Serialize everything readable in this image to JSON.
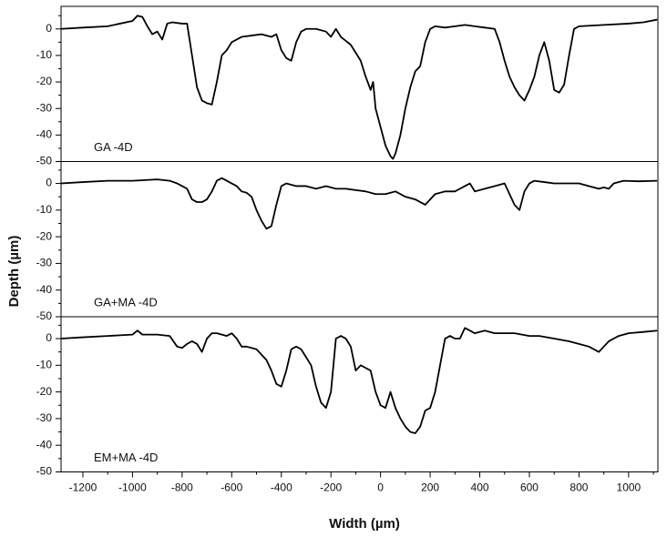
{
  "chart_data": [
    {
      "type": "line",
      "annotation": "GA  -4D",
      "x": [
        -1288,
        -1200,
        -1100,
        -1050,
        -1000,
        -980,
        -960,
        -940,
        -920,
        -900,
        -880,
        -860,
        -840,
        -800,
        -780,
        -760,
        -740,
        -720,
        -700,
        -680,
        -660,
        -640,
        -620,
        -600,
        -560,
        -520,
        -480,
        -440,
        -420,
        -400,
        -380,
        -360,
        -340,
        -320,
        -300,
        -260,
        -220,
        -200,
        -180,
        -160,
        -120,
        -80,
        -60,
        -40,
        -30,
        -20,
        0,
        20,
        40,
        50,
        60,
        80,
        100,
        120,
        140,
        160,
        180,
        200,
        220,
        260,
        300,
        340,
        380,
        420,
        460,
        480,
        500,
        520,
        540,
        560,
        580,
        600,
        620,
        640,
        660,
        680,
        700,
        720,
        740,
        760,
        780,
        800,
        900,
        1000,
        1060,
        1115
      ],
      "values": [
        0,
        0.5,
        1,
        2,
        3,
        5,
        4.5,
        1,
        -2,
        -1,
        -4,
        2,
        2.5,
        2,
        2,
        -10,
        -22,
        -27,
        -28,
        -28.5,
        -20,
        -10,
        -8,
        -5,
        -3,
        -2.5,
        -2,
        -3,
        -2,
        -8,
        -11,
        -12,
        -5,
        -1,
        0,
        0,
        -1,
        -3,
        0,
        -3,
        -6,
        -12,
        -18,
        -23,
        -20,
        -30,
        -37,
        -44,
        -48,
        -49,
        -47,
        -40,
        -30,
        -22,
        -16,
        -14,
        -5,
        0,
        1,
        0.5,
        1,
        1.5,
        1,
        0.5,
        0,
        -5,
        -12,
        -18,
        -22,
        -25,
        -27,
        -23,
        -18,
        -10,
        -5,
        -12,
        -23,
        -24,
        -21,
        -10,
        0,
        1,
        1.5,
        2,
        2.5,
        3.5
      ],
      "color": "#000000",
      "xlim": [
        -1288,
        1118
      ],
      "ylim": [
        -50,
        8.5
      ],
      "yticks": [
        0,
        -10,
        -20,
        -30,
        -40,
        -50
      ]
    },
    {
      "type": "line",
      "annotation": "GA+MA  -4D",
      "ylabel": "Depth (µm)",
      "x": [
        -1288,
        -1200,
        -1100,
        -1000,
        -900,
        -850,
        -820,
        -800,
        -780,
        -760,
        -740,
        -720,
        -700,
        -680,
        -660,
        -640,
        -620,
        -600,
        -580,
        -560,
        -540,
        -520,
        -500,
        -480,
        -460,
        -440,
        -420,
        -400,
        -380,
        -340,
        -300,
        -260,
        -220,
        -180,
        -140,
        -100,
        -60,
        -20,
        20,
        60,
        100,
        140,
        160,
        180,
        200,
        220,
        260,
        300,
        320,
        340,
        360,
        380,
        420,
        460,
        500,
        520,
        540,
        560,
        580,
        600,
        620,
        660,
        700,
        760,
        800,
        840,
        880,
        900,
        920,
        940,
        980,
        1040,
        1115
      ],
      "values": [
        0,
        0.5,
        1,
        1,
        1.5,
        1,
        0,
        -1,
        -2,
        -6,
        -7,
        -7,
        -6,
        -3,
        1,
        2,
        1,
        0,
        -1,
        -3,
        -3.5,
        -5,
        -10,
        -14,
        -17,
        -16,
        -8,
        -1,
        0,
        -1,
        -1,
        -2,
        -1,
        -2,
        -2,
        -2.5,
        -3,
        -4,
        -4,
        -3,
        -5,
        -6,
        -7,
        -8,
        -6,
        -4,
        -3,
        -3,
        -2,
        -1,
        0,
        -3,
        -2,
        -1,
        0,
        -4,
        -8,
        -10,
        -3,
        0,
        1,
        0.5,
        0,
        0,
        0,
        -1,
        -2,
        -1.5,
        -2,
        0,
        1,
        0.8,
        1
      ],
      "color": "#000000",
      "xlim": [
        -1288,
        1118
      ],
      "ylim": [
        -50,
        8.2
      ],
      "yticks": [
        0,
        -10,
        -20,
        -30,
        -40,
        -50
      ]
    },
    {
      "type": "line",
      "annotation": "EM+MA  -4D",
      "xlabel": "Width (µm)",
      "x": [
        -1288,
        -1200,
        -1100,
        -1000,
        -980,
        -960,
        -900,
        -850,
        -820,
        -800,
        -780,
        -760,
        -740,
        -720,
        -700,
        -680,
        -660,
        -620,
        -600,
        -580,
        -560,
        -540,
        -500,
        -480,
        -460,
        -440,
        -420,
        -400,
        -380,
        -360,
        -340,
        -320,
        -300,
        -280,
        -260,
        -240,
        -220,
        -200,
        -180,
        -160,
        -140,
        -120,
        -100,
        -80,
        -60,
        -40,
        -20,
        0,
        20,
        40,
        60,
        80,
        100,
        120,
        140,
        160,
        180,
        200,
        220,
        240,
        260,
        280,
        300,
        320,
        340,
        360,
        380,
        420,
        460,
        500,
        540,
        600,
        640,
        700,
        760,
        800,
        840,
        880,
        900,
        920,
        960,
        1000,
        1060,
        1115
      ],
      "values": [
        0,
        0.5,
        1,
        1.5,
        3,
        1.5,
        1.5,
        1,
        -3,
        -3.5,
        -2,
        -1,
        -2,
        -5,
        0,
        2,
        2,
        1,
        2,
        0,
        -3,
        -3,
        -4,
        -6,
        -8,
        -12,
        -17,
        -18,
        -12,
        -4,
        -3,
        -4,
        -7,
        -10,
        -18,
        -24,
        -26,
        -20,
        0,
        1,
        0,
        -3,
        -12,
        -10,
        -11,
        -12,
        -20,
        -25,
        -26,
        -20,
        -26,
        -30,
        -33,
        -35,
        -35.5,
        -33,
        -27,
        -26,
        -20,
        -10,
        0,
        1,
        0,
        0,
        4,
        3,
        2,
        3,
        2,
        2,
        2,
        1,
        1,
        0,
        -1,
        -2,
        -3,
        -5,
        -3,
        -1,
        1,
        2,
        2.5,
        3
      ],
      "color": "#000000",
      "xlim": [
        -1288,
        1118
      ],
      "ylim": [
        -50,
        8.2
      ],
      "yticks": [
        0,
        -10,
        -20,
        -30,
        -40,
        -50
      ],
      "xticks": [
        -1200,
        -1000,
        -800,
        -600,
        -400,
        -200,
        0,
        200,
        400,
        600,
        800,
        1000
      ]
    }
  ]
}
